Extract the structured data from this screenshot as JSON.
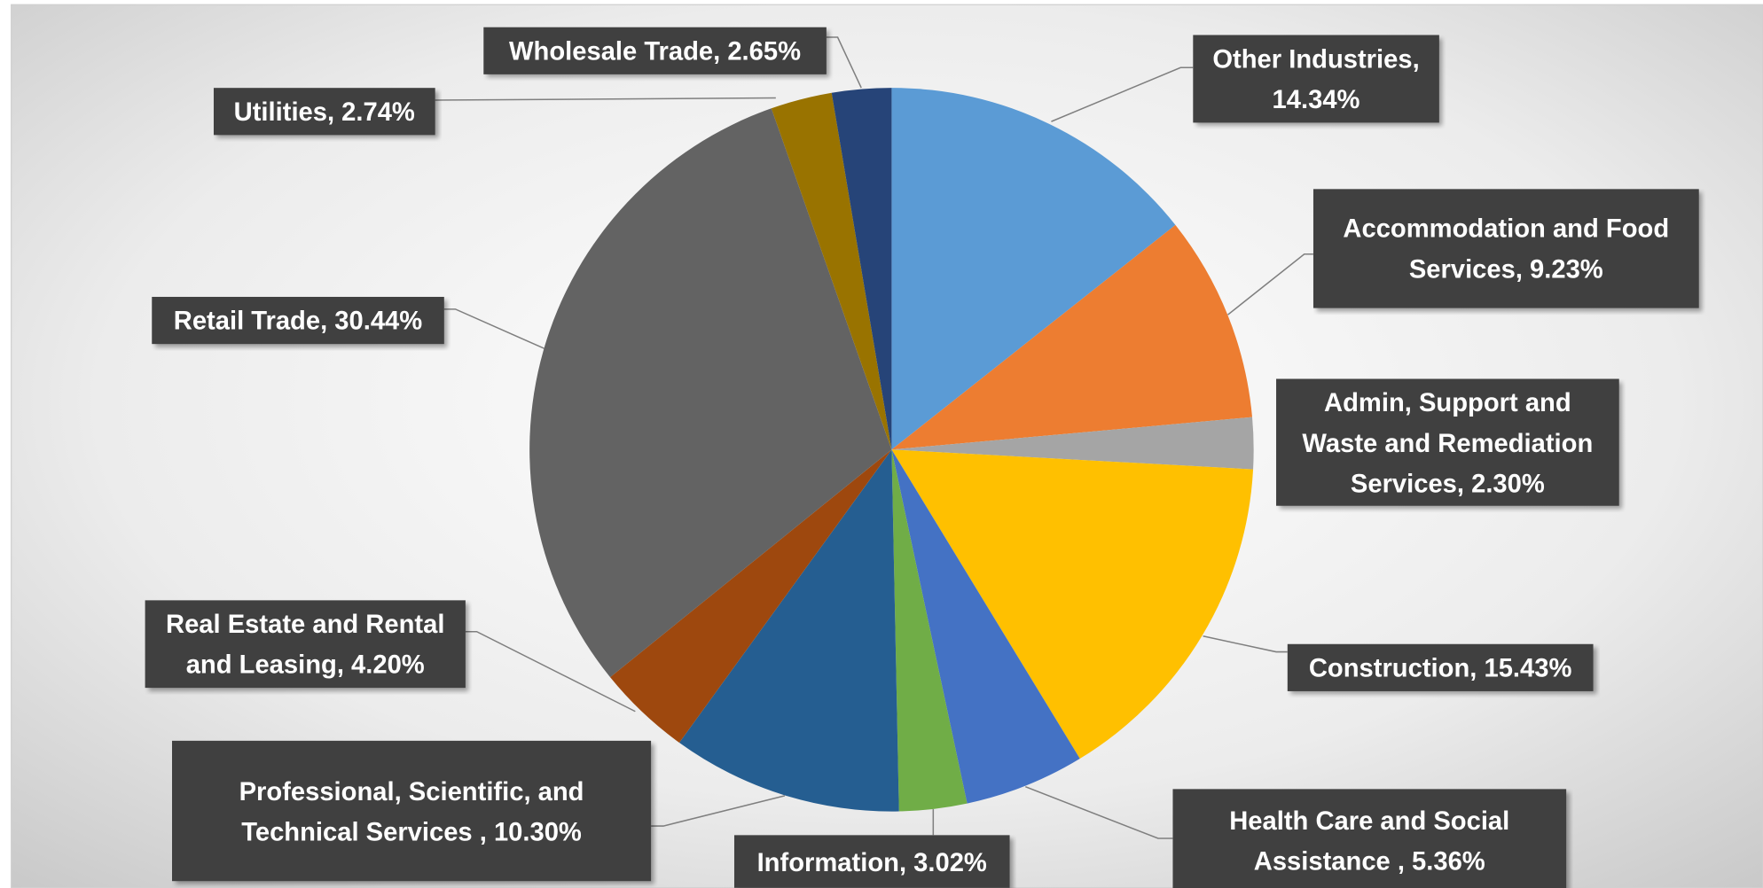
{
  "chart_data": {
    "type": "pie",
    "values": [
      14.34,
      9.23,
      2.3,
      15.43,
      5.36,
      3.02,
      10.3,
      4.2,
      30.44,
      2.74,
      2.65
    ],
    "value_labels": [
      "Other Industries, 14.34%",
      "Accommodation and Food Services, 9.23%",
      "Admin, Support and Waste and Remediation Services, 2.30%",
      "Construction, 15.43%",
      "Health Care and Social Assistance , 5.36%",
      "Information, 3.02%",
      "Professional, Scientific, and Technical Services , 10.30%",
      "Real Estate and Rental and Leasing, 4.20%",
      "Retail Trade, 30.44%",
      "Utilities, 2.74%",
      "Wholesale Trade, 2.65%"
    ],
    "colors": [
      "#5b9bd5",
      "#ed7d31",
      "#a5a5a5",
      "#ffc000",
      "#4472c4",
      "#70ad47",
      "#255e91",
      "#9e480e",
      "#636363",
      "#997300",
      "#264478"
    ]
  }
}
